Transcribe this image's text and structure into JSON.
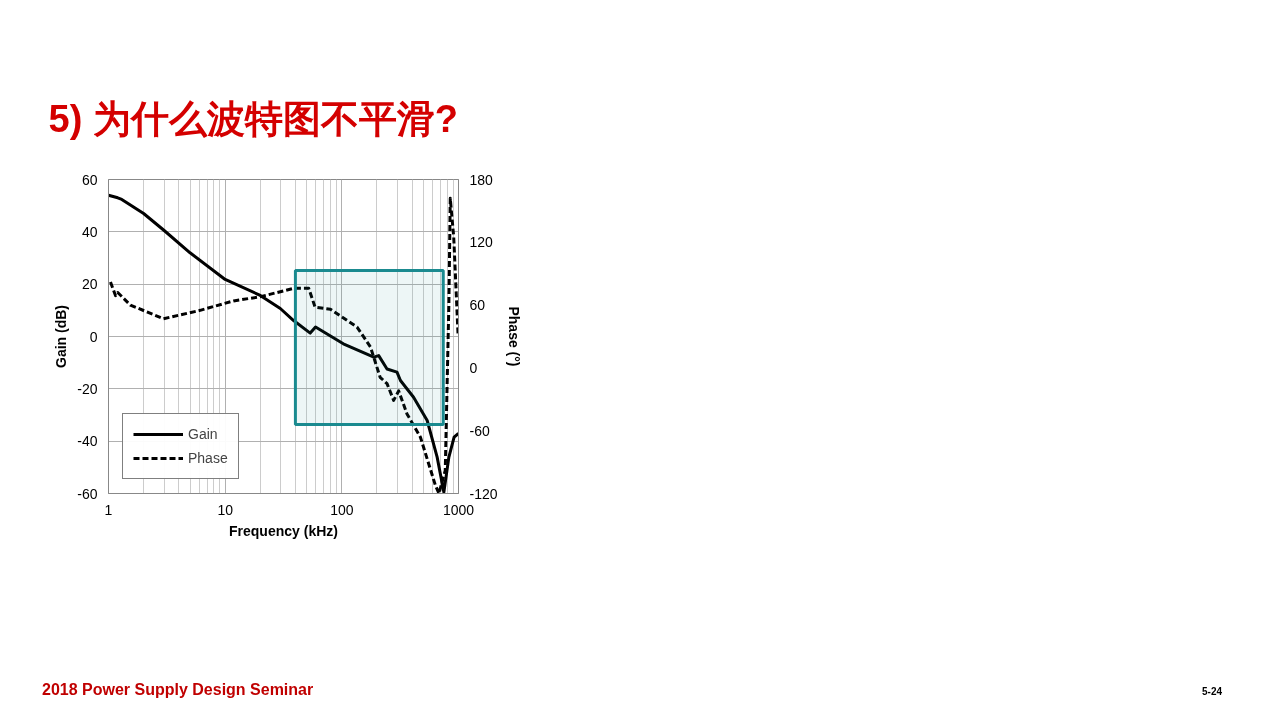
{
  "chart_data": {
    "type": "line",
    "title": "5) 为什么波特图不平滑?",
    "xlabel": "Frequency (kHz)",
    "ylabel": "Gain (dB)",
    "y2label": "Phase (°)",
    "log": "x",
    "xlim": [
      1,
      1000
    ],
    "xticks": [
      1,
      10,
      100,
      1000
    ],
    "ylim": [
      -60,
      60
    ],
    "yticks": [
      -60,
      -40,
      -20,
      0,
      20,
      40,
      60
    ],
    "y2lim": [
      -120,
      180
    ],
    "y2ticks": [
      -120,
      -60,
      0,
      60,
      120,
      180
    ],
    "grid": true,
    "legend": "bottom left",
    "marker": "none",
    "series": [
      {
        "name": "Gain",
        "color": "#000000",
        "line_style": "solid",
        "x": [
          1,
          1.2,
          1.3,
          2,
          3,
          5,
          10,
          20,
          29.7,
          38.6,
          53.6,
          59.5,
          103,
          188,
          207,
          244,
          297,
          318,
          412,
          539,
          656,
          749,
          827,
          917,
          1000
        ],
        "values": [
          54,
          53,
          52.4,
          47,
          40.5,
          32,
          21.8,
          15.7,
          10.7,
          6.1,
          1.3,
          3.6,
          -2.8,
          -7.9,
          -7.3,
          -12.4,
          -13.6,
          -16.8,
          -23.2,
          -32.1,
          -46.1,
          -59.5,
          -46.1,
          -38.5,
          -37
        ]
      },
      {
        "name": "Phase",
        "color": "#000000",
        "line_style": "dashed",
        "axis": "y2",
        "x": [
          1.04,
          1.15,
          1.2,
          1.54,
          2.96,
          6.1,
          11.8,
          20,
          38.7,
          52,
          59,
          79.8,
          135,
          176,
          213,
          244,
          278,
          307,
          362,
          471,
          633,
          680,
          770,
          827,
          850,
          910,
          990
        ],
        "values": [
          82,
          69,
          72,
          60,
          47,
          55,
          64,
          68,
          76,
          76,
          58,
          56,
          39,
          20,
          -9,
          -15,
          -31,
          -22,
          -44,
          -66,
          -112,
          -120,
          -98,
          61,
          162,
          125,
          33
        ]
      }
    ],
    "bands": [
      {
        "axis": "x",
        "from": 40,
        "to": 740,
        "color": "#1a8a8f"
      }
    ],
    "annotations": [
      "2018 Power Supply Design Seminar",
      "5-24"
    ]
  }
}
